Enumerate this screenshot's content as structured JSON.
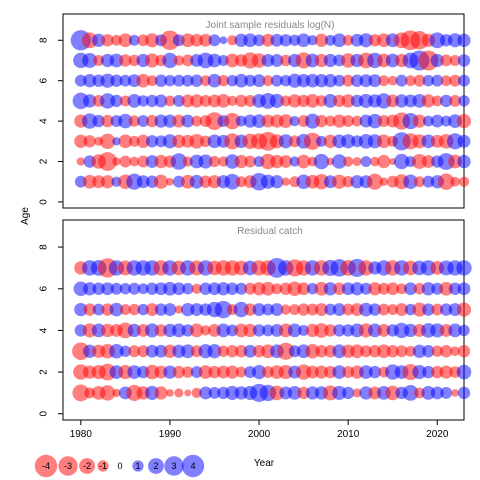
{
  "chart_data": {
    "type": "scatter",
    "description_type": "bubble-residual",
    "xlabel": "Year",
    "ylabel": "Age",
    "x_range": [
      1978,
      2023
    ],
    "x_ticks": [
      1980,
      1990,
      2000,
      2010,
      2020
    ],
    "y_ticks": [
      0,
      2,
      4,
      6,
      8
    ],
    "colors": {
      "positive": "#0000ff",
      "negative": "#ff0000"
    },
    "panels": [
      {
        "title": "Joint sample residuals log(N)",
        "ylim": [
          -0.3,
          9.3
        ],
        "ages": [
          1,
          2,
          3,
          4,
          5,
          6,
          7,
          8
        ],
        "years": [
          1980,
          2023
        ],
        "residuals": [
          [
            1.2,
            -1.6,
            -1.4,
            -1.5,
            0.9,
            -1.8,
            2.2,
            1.4,
            1.3,
            -1.7,
            -0.5,
            1.2,
            -1.6,
            1.6,
            -1.3,
            -1.5,
            1.5,
            2.1,
            -1.0,
            -1.4,
            2.6,
            1.7,
            1.5,
            -0.6,
            -1.0,
            1.8,
            -1.6,
            -2.0,
            1.4,
            -1.7,
            -1.1,
            1.5,
            1.4,
            -2.2,
            -0.6,
            -1.2,
            -1.9,
            1.8,
            -1.0,
            1.2,
            1.5,
            -2.3,
            -0.8,
            -0.9
          ],
          [
            -0.6,
            1.3,
            -1.8,
            -3.0,
            -0.6,
            -1.2,
            -0.8,
            -1.2,
            1.4,
            -1.5,
            -1.3,
            2.3,
            -0.9,
            1.6,
            1.7,
            -1.1,
            -0.9,
            1.8,
            -1.5,
            -1.2,
            1.0,
            -2.0,
            -1.5,
            -1.4,
            0.9,
            -1.6,
            -0.8,
            2.0,
            -0.5,
            1.8,
            -0.9,
            -0.7,
            1.0,
            -0.8,
            -1.5,
            -0.4,
            2.0,
            1.0,
            -1.9,
            -1.4,
            1.3,
            2.4,
            -1.6,
            1.5
          ],
          [
            -1.5,
            -1.3,
            -0.7,
            -2.0,
            0.6,
            -1.6,
            -1.0,
            -1.5,
            1.3,
            1.2,
            1.7,
            -1.5,
            -1.4,
            -1.8,
            -1.1,
            1.6,
            1.4,
            -2.2,
            1.5,
            -2.0,
            -2.2,
            -3.0,
            -1.7,
            1.7,
            -1.2,
            1.8,
            -2.5,
            1.0,
            -1.5,
            1.6,
            1.7,
            1.2,
            1.8,
            1.7,
            -1.6,
            -1.0,
            2.8,
            -2.2,
            -1.7,
            1.6,
            -1.4,
            -1.8,
            2.2,
            1.4
          ],
          [
            -1.5,
            2.0,
            1.3,
            -1.3,
            1.2,
            1.8,
            -1.1,
            1.2,
            -1.3,
            1.5,
            1.5,
            -1.4,
            1.4,
            -1.0,
            -1.2,
            -2.7,
            1.2,
            -2.3,
            1.0,
            1.5,
            1.6,
            -1.4,
            -1.5,
            -1.6,
            0.9,
            -1.2,
            1.9,
            -1.3,
            -1.0,
            -1.5,
            -1.2,
            -1.0,
            1.4,
            1.8,
            -1.2,
            -1.4,
            -2.5,
            2.2,
            -1.5,
            1.0,
            1.4,
            1.0,
            1.6,
            -1.7
          ],
          [
            2.3,
            1.5,
            -1.2,
            2.0,
            1.3,
            -1.0,
            1.6,
            1.1,
            1.3,
            1.4,
            -1.0,
            1.2,
            -1.4,
            -1.5,
            -1.2,
            -1.4,
            -1.6,
            -0.9,
            -1.3,
            -1.2,
            1.6,
            2.1,
            1.7,
            -1.0,
            -1.5,
            -1.3,
            -1.6,
            -1.1,
            1.6,
            -1.3,
            -1.5,
            1.3,
            1.7,
            1.5,
            2.0,
            -1.4,
            1.5,
            1.4,
            1.6,
            -1.5,
            -1.0,
            1.3,
            -1.2,
            1.1
          ],
          [
            1.2,
            1.5,
            1.3,
            1.7,
            1.3,
            1.2,
            1.4,
            -1.6,
            -1.0,
            1.3,
            1.1,
            1.2,
            1.2,
            1.3,
            -1.0,
            1.6,
            -1.1,
            1.1,
            1.6,
            1.2,
            1.4,
            -1.0,
            1.2,
            1.1,
            1.7,
            1.5,
            1.6,
            1.5,
            1.5,
            1.2,
            -1.2,
            1.3,
            1.4,
            1.4,
            -1.0,
            -0.8,
            1.2,
            -1.0,
            -1.2,
            1.1,
            1.2,
            -1.0,
            -1.2,
            1.2
          ],
          [
            2.0,
            1.9,
            -1.0,
            1.5,
            1.6,
            -1.3,
            -1.1,
            1.5,
            -1.7,
            -1.1,
            2.0,
            -0.9,
            -1.2,
            1.4,
            2.1,
            1.6,
            1.0,
            -1.6,
            -1.3,
            -2.2,
            -1.8,
            1.4,
            1.4,
            -1.1,
            1.5,
            -2.2,
            1.6,
            -1.5,
            1.5,
            1.2,
            -1.8,
            1.5,
            -2.1,
            2.0,
            -1.6,
            1.6,
            -1.5,
            2.1,
            3.4,
            -3.4,
            1.5,
            -1.2,
            -1.0,
            1.3
          ],
          [
            3.5,
            -2.1,
            1.5,
            -1.3,
            -1.0,
            -1.6,
            1.0,
            -1.2,
            -1.7,
            1.2,
            -3.2,
            1.2,
            -1.6,
            -1.4,
            -1.4,
            1.2,
            0.5,
            -0.9,
            1.5,
            1.6,
            1.2,
            -1.4,
            1.4,
            1.3,
            1.1,
            1.6,
            0.9,
            -1.5,
            1.0,
            1.6,
            -1.0,
            1.4,
            1.7,
            -1.3,
            -1.6,
            1.6,
            -2.1,
            -3.3,
            -2.9,
            -1.5,
            2.1,
            1.3,
            1.7,
            1.5
          ]
        ]
      },
      {
        "title": "Residual catch",
        "ylim": [
          -0.3,
          9.3
        ],
        "ages": [
          1,
          2,
          3,
          4,
          5,
          6,
          7
        ],
        "years": [
          1980,
          2023
        ],
        "residuals": [
          [
            -2.4,
            -1.0,
            -1.6,
            -2.0,
            -0.6,
            1.4,
            -2.2,
            -1.5,
            1.7,
            -1.5,
            -0.5,
            -0.7,
            -0.4,
            -0.9,
            1.4,
            1.2,
            1.3,
            1.7,
            1.5,
            1.7,
            2.8,
            2.3,
            -1.8,
            1.4,
            1.6,
            -1.3,
            1.5,
            1.5,
            -1.9,
            1.7,
            1.3,
            -0.7,
            1.5,
            -1.4,
            1.6,
            -1.8,
            1.3,
            2.1,
            -1.0,
            1.6,
            1.4,
            1.2,
            -0.5,
            1.3
          ],
          [
            -2.0,
            -1.5,
            -1.7,
            -2.4,
            1.6,
            -1.7,
            1.6,
            1.3,
            -1.8,
            -1.4,
            1.5,
            -1.3,
            -1.1,
            1.2,
            -1.6,
            -1.3,
            -1.4,
            -1.5,
            -1.0,
            1.2,
            1.7,
            -1.2,
            -1.6,
            -1.7,
            1.4,
            -2.0,
            -1.4,
            -1.5,
            -1.3,
            1.6,
            -1.2,
            -1.5,
            1.6,
            1.3,
            -1.0,
            2.0,
            1.6,
            -2.2,
            1.7,
            1.3,
            -1.3,
            -1.5,
            -1.1,
            1.8
          ],
          [
            -2.6,
            1.5,
            -1.5,
            -1.8,
            1.8,
            1.1,
            -1.2,
            -1.2,
            1.4,
            1.4,
            -1.5,
            1.5,
            1.6,
            -1.2,
            1.7,
            1.7,
            -1.1,
            -1.3,
            -1.3,
            1.4,
            -1.3,
            -1.6,
            1.6,
            -2.5,
            1.2,
            1.6,
            -1.8,
            -1.3,
            -1.3,
            1.6,
            -1.5,
            -1.6,
            -1.2,
            -1.3,
            -1.6,
            -1.3,
            -1.2,
            -1.0,
            1.5,
            1.3,
            -1.1,
            -1.3,
            -0.8,
            -1.3
          ],
          [
            1.3,
            -1.7,
            1.6,
            -1.5,
            -1.4,
            -2.1,
            1.5,
            -1.4,
            1.7,
            -1.3,
            1.5,
            1.6,
            1.3,
            -1.6,
            -0.9,
            -1.4,
            1.6,
            1.2,
            -1.6,
            -1.5,
            1.3,
            1.2,
            1.4,
            -1.6,
            1.6,
            1.0,
            -1.5,
            -1.8,
            -1.3,
            1.3,
            1.3,
            1.6,
            -1.7,
            1.6,
            -1.4,
            1.3,
            2.0,
            1.5,
            -1.4,
            1.8,
            1.7,
            -1.4,
            1.6,
            1.1
          ],
          [
            1.5,
            -1.3,
            1.2,
            -1.3,
            1.6,
            -1.0,
            -1.1,
            1.1,
            -1.4,
            1.3,
            1.4,
            -0.6,
            1.5,
            1.4,
            1.3,
            2.0,
            2.6,
            -1.0,
            2.0,
            -1.3,
            1.4,
            1.2,
            1.4,
            -0.9,
            -1.0,
            -1.3,
            -1.2,
            -1.4,
            1.2,
            1.4,
            -1.2,
            -1.4,
            1.6,
            1.3,
            -1.2,
            -1.0,
            -1.4,
            1.1,
            -1.7,
            1.3,
            -1.2,
            1.3,
            1.4,
            -1.7
          ],
          [
            1.8,
            1.5,
            1.3,
            1.4,
            1.2,
            1.1,
            1.2,
            1.0,
            1.3,
            1.4,
            1.6,
            1.4,
            1.1,
            -0.9,
            1.3,
            1.4,
            1.5,
            1.3,
            1.2,
            -1.2,
            -1.5,
            -1.6,
            -1.0,
            -1.3,
            -1.8,
            -1.4,
            1.1,
            -1.6,
            1.5,
            -1.3,
            1.4,
            1.5,
            1.2,
            -1.5,
            -1.2,
            -1.4,
            -1.0,
            1.4,
            -1.1,
            1.5,
            1.2,
            -1.6,
            1.3,
            1.4
          ],
          [
            -1.5,
            2.0,
            2.1,
            -3.2,
            2.0,
            -1.9,
            2.0,
            2.0,
            2.0,
            -2.0,
            2.0,
            -1.8,
            2.0,
            -1.9,
            2.0,
            -1.8,
            -2.0,
            -2.0,
            -1.8,
            1.8,
            -2.0,
            -2.0,
            3.3,
            2.0,
            -2.5,
            -2.0,
            2.0,
            -2.0,
            2.2,
            2.6,
            -2.1,
            2.8,
            -2.0,
            1.5,
            2.0,
            -2.0,
            2.0,
            -1.8,
            1.8,
            2.0,
            -1.6,
            1.9,
            2.0,
            2.0
          ]
        ]
      }
    ],
    "legend": {
      "values": [
        -4,
        -3,
        -2,
        -1,
        0,
        1,
        2,
        3,
        4
      ],
      "labels": [
        "-4",
        "-3",
        "-2",
        "-1",
        "0",
        "1",
        "2",
        "3",
        "4"
      ]
    }
  }
}
